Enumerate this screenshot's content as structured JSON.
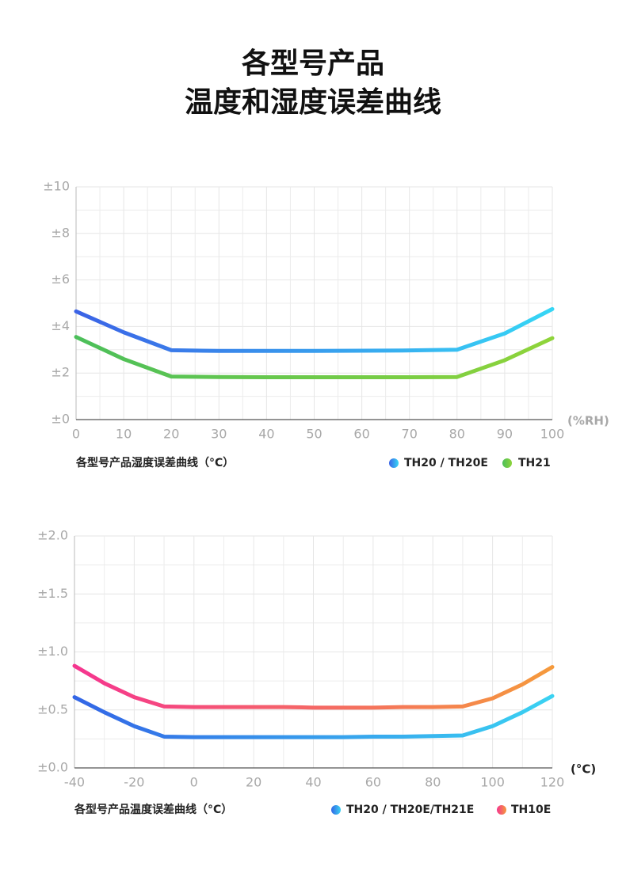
{
  "title": [
    "各型号产品",
    "温度和湿度误差曲线"
  ],
  "chart_data": [
    {
      "type": "line",
      "caption": "各型号产品湿度误差曲线（°C）",
      "x_label": "(%RH)",
      "x": [
        0,
        10,
        20,
        30,
        40,
        50,
        60,
        70,
        80,
        90,
        100
      ],
      "xlim": [
        0,
        100
      ],
      "xticks": [
        0,
        10,
        20,
        30,
        40,
        50,
        60,
        70,
        80,
        90,
        100
      ],
      "ylim": [
        0,
        10
      ],
      "yticks": [
        {
          "value": 0,
          "label": "±0"
        },
        {
          "value": 2,
          "label": "±2"
        },
        {
          "value": 4,
          "label": "±4"
        },
        {
          "value": 6,
          "label": "±6"
        },
        {
          "value": 8,
          "label": "±8"
        },
        {
          "value": 10,
          "label": "±10"
        }
      ],
      "grid": true,
      "series": [
        {
          "name": "TH20 / TH20E",
          "color": [
            "#3b63e6",
            "#36d6f5"
          ],
          "values": [
            4.65,
            3.75,
            2.98,
            2.95,
            2.95,
            2.95,
            2.96,
            2.97,
            3.0,
            3.7,
            4.75
          ]
        },
        {
          "name": "TH21",
          "color": [
            "#4cbf5a",
            "#8fd43a"
          ],
          "values": [
            3.55,
            2.6,
            1.85,
            1.83,
            1.82,
            1.82,
            1.82,
            1.82,
            1.83,
            2.55,
            3.5
          ]
        }
      ]
    },
    {
      "type": "line",
      "caption": "各型号产品温度误差曲线（°C）",
      "x_label": "(°C)",
      "x": [
        -40,
        -30,
        -20,
        -10,
        0,
        10,
        20,
        30,
        40,
        50,
        60,
        70,
        80,
        90,
        100,
        110,
        120
      ],
      "xlim": [
        -40,
        120
      ],
      "xticks": [
        -40,
        -20,
        0,
        20,
        40,
        60,
        80,
        100,
        120
      ],
      "ylim": [
        0,
        2
      ],
      "yticks": [
        {
          "value": 0,
          "label": "±0.0"
        },
        {
          "value": 0.5,
          "label": "±0.5"
        },
        {
          "value": 1,
          "label": "±1.0"
        },
        {
          "value": 1.5,
          "label": "±1.5"
        },
        {
          "value": 2,
          "label": "±2.0"
        }
      ],
      "grid": true,
      "series": [
        {
          "name": "TH20 / TH20E/TH21E",
          "color": [
            "#3366e6",
            "#3ad2f2"
          ],
          "values": [
            0.61,
            0.48,
            0.36,
            0.27,
            0.265,
            0.265,
            0.265,
            0.265,
            0.265,
            0.265,
            0.27,
            0.27,
            0.275,
            0.28,
            0.36,
            0.48,
            0.62
          ]
        },
        {
          "name": "TH10E",
          "color": [
            "#f5358f",
            "#f59a3c"
          ],
          "values": [
            0.88,
            0.73,
            0.61,
            0.53,
            0.525,
            0.525,
            0.525,
            0.525,
            0.52,
            0.52,
            0.52,
            0.525,
            0.525,
            0.53,
            0.6,
            0.72,
            0.87
          ]
        }
      ]
    }
  ]
}
